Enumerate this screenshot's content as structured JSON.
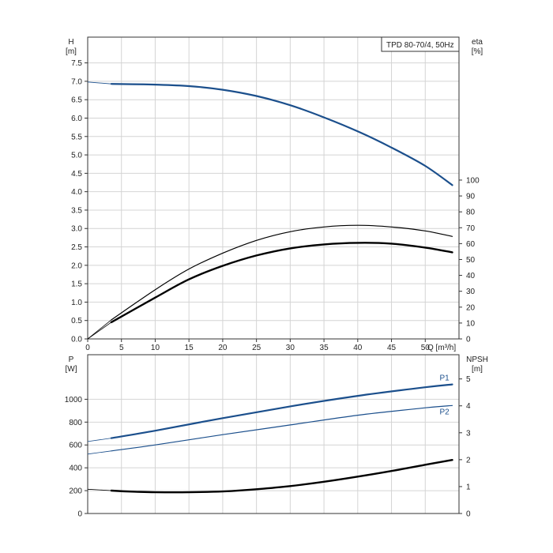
{
  "chart_data": [
    {
      "type": "line",
      "title": "TPD 80-70/4, 50Hz",
      "xlabel": "Q [m³/h]",
      "xlim": [
        0,
        55
      ],
      "x_ticks": [
        0,
        5,
        10,
        15,
        20,
        25,
        30,
        35,
        40,
        45,
        50
      ],
      "left_axis": {
        "label_line1": "H",
        "label_line2": "[m]",
        "lim": [
          0,
          8.2
        ],
        "ticks": [
          "0.0",
          "0.5",
          "1.0",
          "1.5",
          "2.0",
          "2.5",
          "3.0",
          "3.5",
          "4.0",
          "4.5",
          "5.0",
          "5.5",
          "6.0",
          "6.5",
          "7.0",
          "7.5"
        ]
      },
      "right_axis": {
        "label_line1": "eta",
        "label_line2": "[%]",
        "lim": [
          0,
          190
        ],
        "ticks": [
          0,
          10,
          20,
          30,
          40,
          50,
          60,
          70,
          80,
          90,
          100
        ]
      },
      "grid": true,
      "series": [
        {
          "axis": "left",
          "color": "#1b4f8c",
          "width": 2.2,
          "x": [
            3.5,
            10,
            15,
            20,
            25,
            30,
            35,
            40,
            45,
            50,
            54
          ],
          "y": [
            6.93,
            6.91,
            6.87,
            6.77,
            6.6,
            6.35,
            6.02,
            5.64,
            5.2,
            4.7,
            4.18
          ],
          "thin_extension": {
            "x": [
              0,
              3.5
            ],
            "y": [
              6.98,
              6.93
            ]
          }
        },
        {
          "axis": "right",
          "color": "#000000",
          "width": 1.2,
          "x": [
            3.5,
            10,
            15,
            20,
            25,
            30,
            35,
            40,
            45,
            50,
            54
          ],
          "y": [
            12,
            31,
            44,
            54,
            62,
            67.5,
            70.5,
            71.5,
            70.5,
            68,
            64.5
          ],
          "thin_extension": {
            "x": [
              0,
              3.5
            ],
            "y": [
              0,
              12
            ]
          }
        },
        {
          "axis": "right",
          "color": "#000000",
          "width": 2.4,
          "x": [
            3.5,
            10,
            15,
            20,
            25,
            30,
            35,
            40,
            45,
            50,
            54
          ],
          "y": [
            10.5,
            26,
            37.5,
            46,
            52.5,
            57,
            59.5,
            60.5,
            60,
            57.5,
            54.5
          ],
          "thin_extension": {
            "x": [
              0,
              3.5
            ],
            "y": [
              0,
              10.5
            ]
          }
        }
      ]
    },
    {
      "type": "line",
      "xlim": [
        0,
        55
      ],
      "left_axis": {
        "label_line1": "P",
        "label_line2": "[W]",
        "lim": [
          0,
          1390
        ],
        "ticks": [
          0,
          200,
          400,
          600,
          800,
          1000
        ]
      },
      "right_axis": {
        "label_line1": "NPSH",
        "label_line2": "[m]",
        "lim": [
          0,
          5.9
        ],
        "ticks": [
          0,
          1,
          2,
          3,
          4,
          5
        ]
      },
      "grid": true,
      "series": [
        {
          "name": "P1",
          "axis": "left",
          "color": "#1b4f8c",
          "width": 2.2,
          "x": [
            3.5,
            10,
            20,
            30,
            40,
            50,
            54
          ],
          "y": [
            660,
            725,
            835,
            938,
            1030,
            1105,
            1130
          ],
          "thin_extension": {
            "x": [
              0,
              3.5
            ],
            "y": [
              630,
              660
            ]
          }
        },
        {
          "name": "P2",
          "axis": "left",
          "color": "#1b4f8c",
          "width": 1.2,
          "x": [
            3.5,
            10,
            20,
            30,
            40,
            50,
            54
          ],
          "y": [
            548,
            600,
            690,
            775,
            860,
            925,
            945
          ],
          "thin_extension": {
            "x": [
              0,
              3.5
            ],
            "y": [
              520,
              548
            ]
          }
        },
        {
          "axis": "right",
          "color": "#000000",
          "width": 2.4,
          "x": [
            3.5,
            7,
            10,
            15,
            20,
            25,
            30,
            35,
            40,
            45,
            50,
            54
          ],
          "y": [
            0.85,
            0.81,
            0.79,
            0.79,
            0.82,
            0.9,
            1.02,
            1.18,
            1.37,
            1.58,
            1.81,
            1.99
          ],
          "thin_extension": {
            "x": [
              0,
              3.5
            ],
            "y": [
              0.9,
              0.85
            ]
          }
        }
      ]
    }
  ]
}
